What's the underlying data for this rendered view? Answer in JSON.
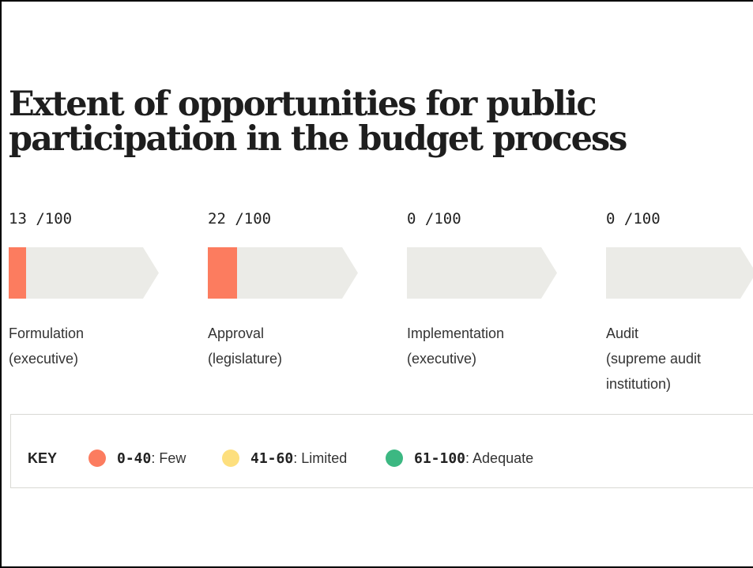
{
  "chart_data": {
    "type": "bar",
    "title": "Extent of opportunities for public participation in the budget process",
    "max": 100,
    "suffix": "/100",
    "categories": [
      "Formulation (executive)",
      "Approval (legislature)",
      "Implementation (executive)",
      "Audit (supreme audit institution)"
    ],
    "values": [
      13,
      22,
      0,
      0
    ],
    "stages": [
      {
        "score": 13,
        "label_line1": "Formulation",
        "label_line2": "(executive)",
        "label_line3": ""
      },
      {
        "score": 22,
        "label_line1": "Approval",
        "label_line2": "(legislature)",
        "label_line3": ""
      },
      {
        "score": 0,
        "label_line1": "Implementation",
        "label_line2": "(executive)",
        "label_line3": ""
      },
      {
        "score": 0,
        "label_line1": "Audit",
        "label_line2": "(supreme audit",
        "label_line3": "institution)"
      }
    ],
    "track_color": "#ebebe7",
    "key": {
      "title": "KEY",
      "items": [
        {
          "range": "0-40",
          "label": ": Few",
          "color": "#fc7c5f"
        },
        {
          "range": "41-60",
          "label": ": Limited",
          "color": "#fddf7e"
        },
        {
          "range": "61-100",
          "label": ": Adequate",
          "color": "#3cb882"
        }
      ]
    }
  }
}
